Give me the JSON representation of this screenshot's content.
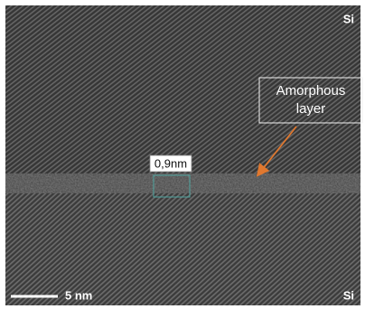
{
  "image": {
    "top_material": "Si",
    "bottom_material": "Si",
    "annotation": {
      "lines": [
        "Amorphous",
        "layer"
      ]
    },
    "thickness_label": "0,9nm",
    "scale_bar": "5 nm"
  }
}
